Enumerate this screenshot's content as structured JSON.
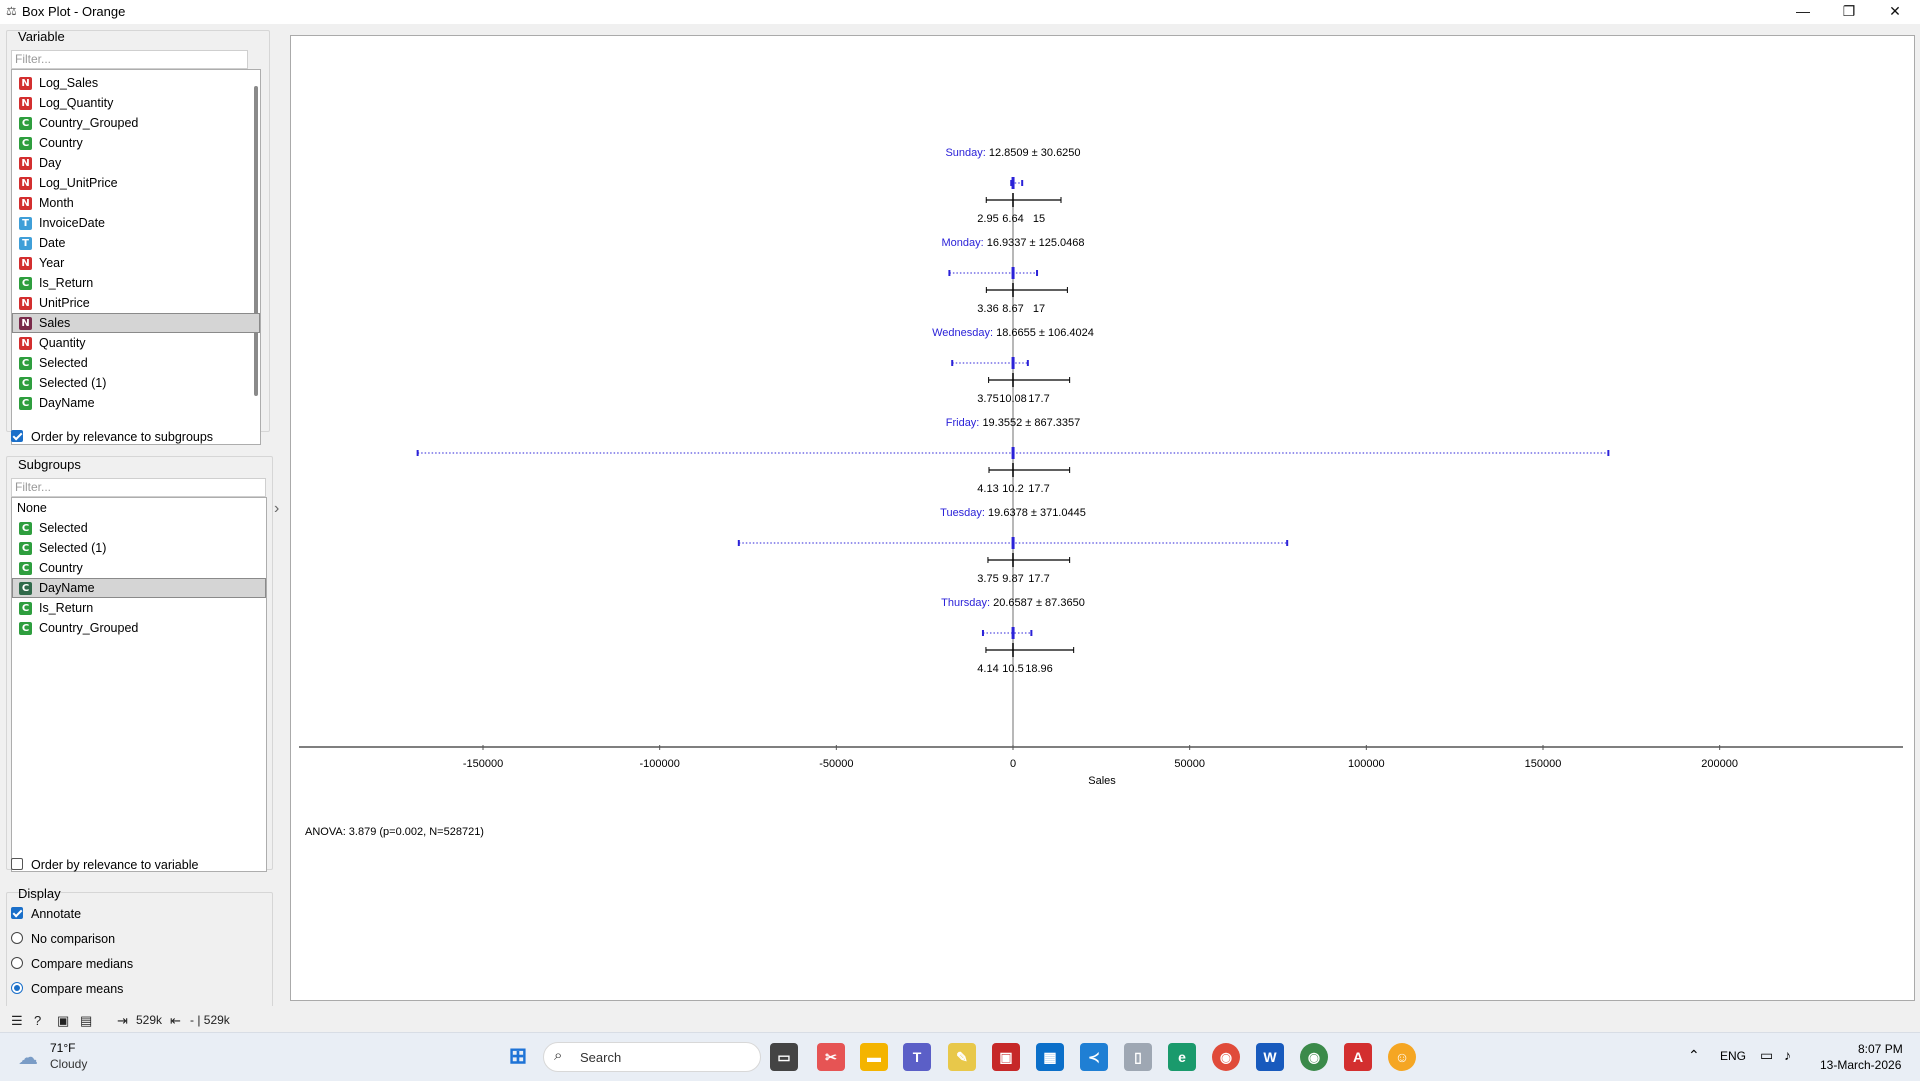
{
  "window": {
    "title": "Box Plot - Orange",
    "min_label": "—",
    "max_label": "❐",
    "close_label": "✕"
  },
  "variable_panel": {
    "title": "Variable",
    "filter_placeholder": "Filter...",
    "items": [
      {
        "type": "N",
        "label": "Log_Sales"
      },
      {
        "type": "N",
        "label": "Log_Quantity"
      },
      {
        "type": "C",
        "label": "Country_Grouped"
      },
      {
        "type": "C",
        "label": "Country"
      },
      {
        "type": "N",
        "label": "Day"
      },
      {
        "type": "N",
        "label": "Log_UnitPrice"
      },
      {
        "type": "N",
        "label": "Month"
      },
      {
        "type": "T",
        "label": "InvoiceDate"
      },
      {
        "type": "T",
        "label": "Date"
      },
      {
        "type": "N",
        "label": "Year"
      },
      {
        "type": "C",
        "label": "Is_Return"
      },
      {
        "type": "N",
        "label": "UnitPrice"
      },
      {
        "type": "N",
        "label": "Sales",
        "selected": true
      },
      {
        "type": "N",
        "label": "Quantity"
      },
      {
        "type": "C",
        "label": "Selected"
      },
      {
        "type": "C",
        "label": "Selected (1)"
      },
      {
        "type": "C",
        "label": "DayName"
      }
    ],
    "order_label": "Order by relevance to subgroups",
    "order_checked": true
  },
  "subgroups_panel": {
    "title": "Subgroups",
    "filter_placeholder": "Filter...",
    "items": [
      {
        "type": "",
        "label": "None"
      },
      {
        "type": "C",
        "label": "Selected"
      },
      {
        "type": "C",
        "label": "Selected (1)"
      },
      {
        "type": "C",
        "label": "Country"
      },
      {
        "type": "C",
        "label": "DayName",
        "selected": true
      },
      {
        "type": "C",
        "label": "Is_Return"
      },
      {
        "type": "C",
        "label": "Country_Grouped"
      }
    ],
    "order_label": "Order by relevance to variable",
    "order_checked": false
  },
  "display_panel": {
    "title": "Display",
    "annotate_label": "Annotate",
    "annotate_checked": true,
    "options": [
      {
        "label": "No comparison",
        "checked": false
      },
      {
        "label": "Compare medians",
        "checked": false
      },
      {
        "label": "Compare means",
        "checked": true
      }
    ]
  },
  "chart_data": {
    "type": "boxplot",
    "xlabel": "Sales",
    "xlim": [
      -200000,
      250000
    ],
    "x_ticks": [
      -150000,
      -100000,
      -50000,
      0,
      50000,
      100000,
      150000,
      200000
    ],
    "groups": [
      {
        "name": "Sunday",
        "mean_label": "12.8509 ± 30.6250",
        "mean": 12.8509,
        "sd": 30.625,
        "q1": 2.95,
        "median": 6.64,
        "q3": 15,
        "q1_label": "2.95",
        "median_label": "6.64",
        "q3_label": "15",
        "min": -500,
        "max": 2600
      },
      {
        "name": "Monday",
        "mean_label": "16.9337 ± 125.0468",
        "mean": 16.9337,
        "sd": 125.0468,
        "q1": 3.36,
        "median": 8.67,
        "q3": 17,
        "q1_label": "3.36",
        "median_label": "8.67",
        "q3_label": "17",
        "min": -18000,
        "max": 6800
      },
      {
        "name": "Wednesday",
        "mean_label": "18.6655 ± 106.4024",
        "mean": 18.6655,
        "sd": 106.4024,
        "q1": 3.75,
        "median": 10.08,
        "q3": 17.7,
        "q1_label": "3.75",
        "median_label": "10.08",
        "q3_label": "17.7",
        "min": -17200,
        "max": 4200
      },
      {
        "name": "Friday",
        "mean_label": "19.3552 ± 867.3357",
        "mean": 19.3552,
        "sd": 867.3357,
        "q1": 4.13,
        "median": 10.2,
        "q3": 17.7,
        "q1_label": "4.13",
        "median_label": "10.2",
        "q3_label": "17.7",
        "min": -168500,
        "max": 168500
      },
      {
        "name": "Tuesday",
        "mean_label": "19.6378 ± 371.0445",
        "mean": 19.6378,
        "sd": 371.0445,
        "q1": 3.75,
        "median": 9.87,
        "q3": 17.7,
        "q1_label": "3.75",
        "median_label": "9.87",
        "q3_label": "17.7",
        "min": -77600,
        "max": 77600
      },
      {
        "name": "Thursday",
        "mean_label": "20.6587 ± 87.3650",
        "mean": 20.6587,
        "sd": 87.365,
        "q1": 4.14,
        "median": 10.5,
        "q3": 18.96,
        "q1_label": "4.14",
        "median_label": "10.5",
        "q3_label": "18.96",
        "min": -8500,
        "max": 5200
      }
    ],
    "anova_label": "ANOVA: 3.879 (p=0.002, N=528721)",
    "colors": {
      "mean": "#2b22d8",
      "box": "#000000",
      "axis": "#555555"
    }
  },
  "statusbar": {
    "input_label": "529k",
    "output_label": "- | 529k"
  },
  "taskbar": {
    "weather_temp": "71°F",
    "weather_desc": "Cloudy",
    "search_placeholder": "Search",
    "lang": "ENG",
    "time": "8:07 PM",
    "date": "13-March-2026"
  }
}
